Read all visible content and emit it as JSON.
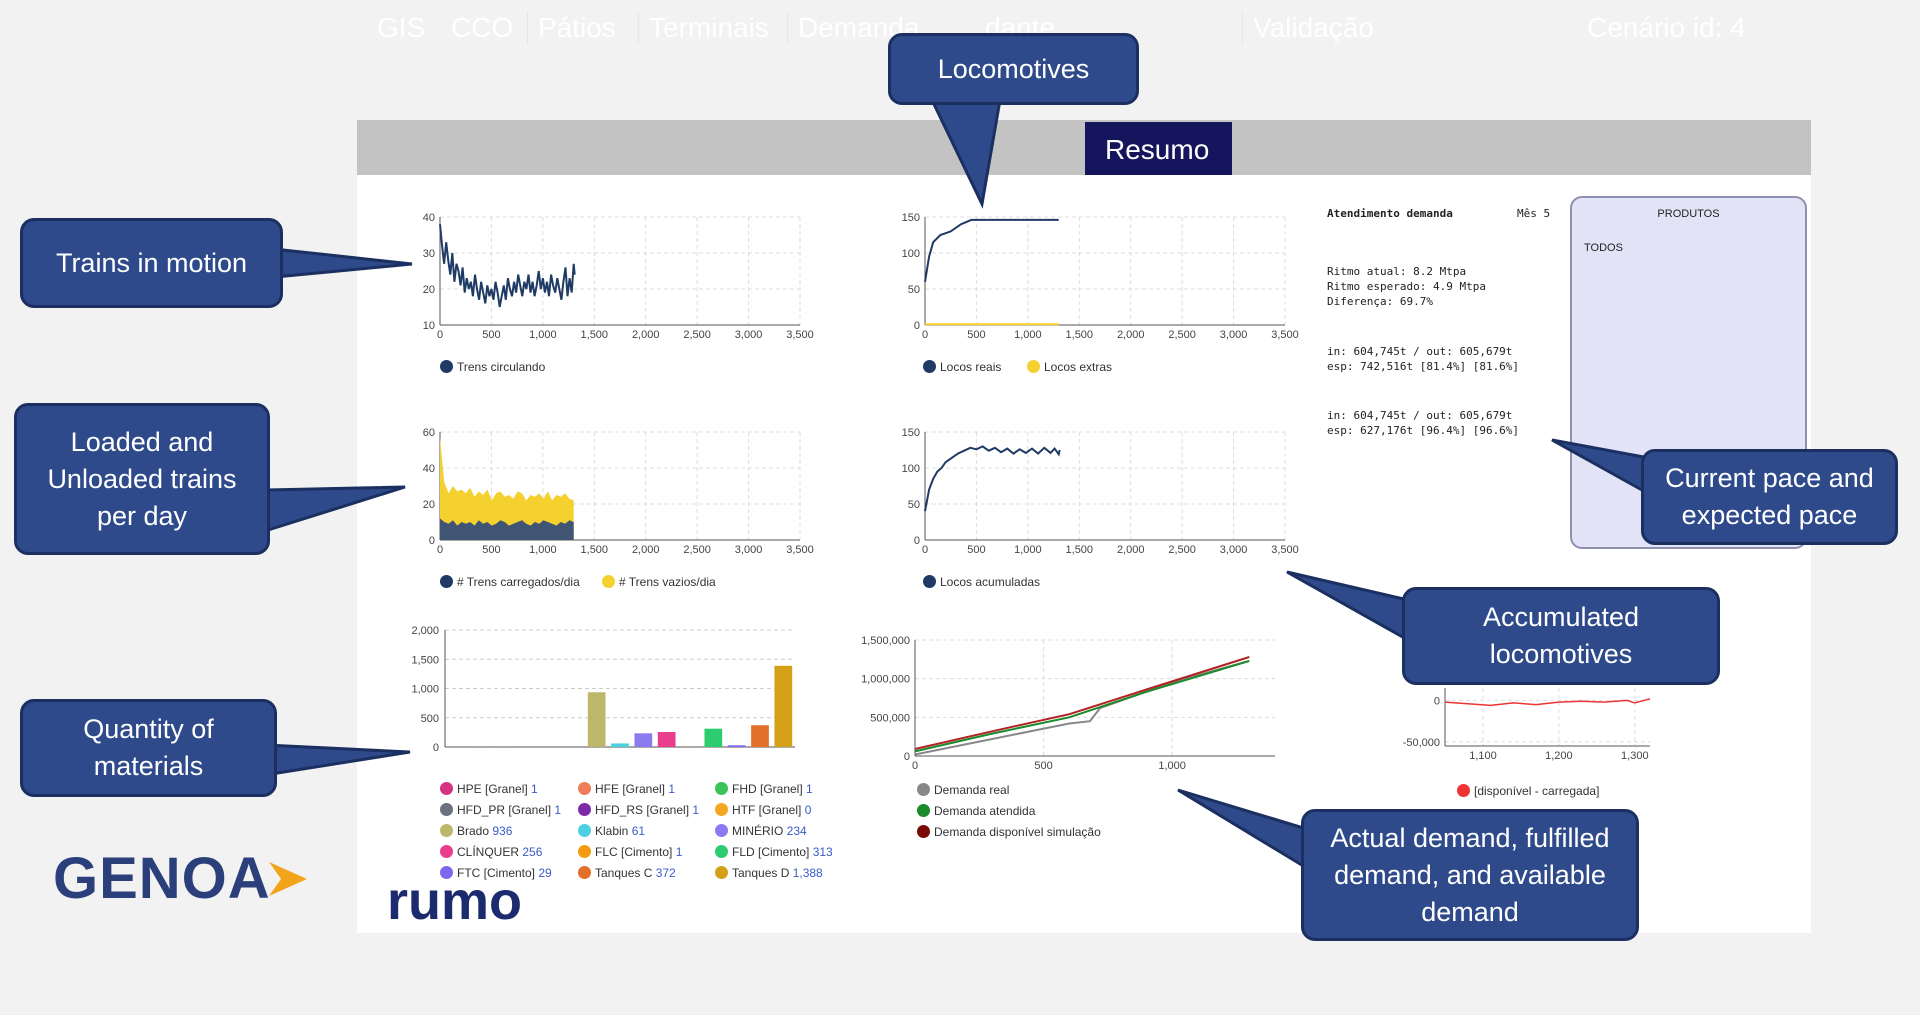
{
  "nav": {
    "tabs": [
      {
        "label": "GIS"
      },
      {
        "label": "CCO"
      },
      {
        "label": "Pátios"
      },
      {
        "label": "Terminais"
      },
      {
        "label": "Demanda"
      },
      {
        "label": "dante"
      },
      {
        "label": "Resumo"
      },
      {
        "label": "Validação"
      }
    ],
    "active": "Resumo",
    "scenario": "Cenário id: 4"
  },
  "summary": {
    "title": "Atendimento demanda",
    "month": "Mês 5",
    "ritmo_atual": "Ritmo atual: 8.2 Mtpa",
    "ritmo_esperado": "Ritmo esperado: 4.9 Mtpa",
    "diferenca": "Diferença: 69.7%",
    "block1_in": "in: 604,745t / out: 605,679t",
    "block1_esp": "esp: 742,516t [81.4%] [81.6%]",
    "block2_in": "in: 604,745t / out: 605,679t",
    "block2_esp": "esp: 627,176t [96.4%] [96.6%]"
  },
  "products": {
    "title": "PRODUTOS",
    "selected": "TODOS"
  },
  "callouts": {
    "locomotives": "Locomotives",
    "trains_motion": "Trains in motion",
    "loaded": "Loaded and Unloaded trains per day",
    "quantity": "Quantity of materials",
    "pace": "Current pace and expected pace",
    "accumulated": "Accumulated locomotives",
    "demand": "Actual demand, fulfilled demand, and available demand"
  },
  "logos": {
    "genoa": "GENOA",
    "rumo": "rumo"
  },
  "colors": {
    "navy": "#1f3a64",
    "yellow": "#f5d130",
    "active_tab": "#14155c",
    "callout": "#2e4a8b"
  },
  "chart_data": [
    {
      "id": "trains",
      "type": "line",
      "xticks": [
        "0",
        "500",
        "1,000",
        "1,500",
        "2,000",
        "2,500",
        "3,000",
        "3,500"
      ],
      "yticks": [
        "10",
        "20",
        "30",
        "40"
      ],
      "xlim": [
        0,
        3500
      ],
      "ylim": [
        10,
        40
      ],
      "series": [
        {
          "name": "Trens circulando",
          "color": "#1f3a64",
          "points": [
            [
              0,
              38
            ],
            [
              20,
              32
            ],
            [
              40,
              27
            ],
            [
              60,
              33
            ],
            [
              80,
              28
            ],
            [
              100,
              24
            ],
            [
              120,
              30
            ],
            [
              140,
              22
            ],
            [
              160,
              27
            ],
            [
              180,
              25
            ],
            [
              200,
              21
            ],
            [
              220,
              26
            ],
            [
              240,
              19
            ],
            [
              260,
              23
            ],
            [
              280,
              20
            ],
            [
              300,
              22
            ],
            [
              320,
              18
            ],
            [
              340,
              24
            ],
            [
              360,
              20
            ],
            [
              380,
              17
            ],
            [
              400,
              22
            ],
            [
              420,
              19
            ],
            [
              440,
              16
            ],
            [
              460,
              21
            ],
            [
              480,
              18
            ],
            [
              500,
              20
            ],
            [
              520,
              17
            ],
            [
              540,
              22
            ],
            [
              560,
              19
            ],
            [
              580,
              15
            ],
            [
              600,
              18
            ],
            [
              620,
              21
            ],
            [
              640,
              17
            ],
            [
              660,
              23
            ],
            [
              680,
              20
            ],
            [
              700,
              18
            ],
            [
              720,
              22
            ],
            [
              740,
              19
            ],
            [
              760,
              24
            ],
            [
              780,
              21
            ],
            [
              800,
              18
            ],
            [
              820,
              22
            ],
            [
              840,
              20
            ],
            [
              860,
              24
            ],
            [
              880,
              19
            ],
            [
              900,
              22
            ],
            [
              920,
              18
            ],
            [
              940,
              21
            ],
            [
              960,
              25
            ],
            [
              980,
              20
            ],
            [
              1000,
              23
            ],
            [
              1020,
              19
            ],
            [
              1040,
              22
            ],
            [
              1060,
              18
            ],
            [
              1080,
              24
            ],
            [
              1100,
              21
            ],
            [
              1120,
              19
            ],
            [
              1140,
              23
            ],
            [
              1160,
              20
            ],
            [
              1180,
              17
            ],
            [
              1200,
              22
            ],
            [
              1220,
              26
            ],
            [
              1240,
              18
            ],
            [
              1260,
              23
            ],
            [
              1280,
              19
            ],
            [
              1300,
              27
            ],
            [
              1310,
              24
            ]
          ]
        }
      ]
    },
    {
      "id": "locos",
      "type": "line",
      "xticks": [
        "0",
        "500",
        "1,000",
        "1,500",
        "2,000",
        "2,500",
        "3,000",
        "3,500"
      ],
      "yticks": [
        "0",
        "50",
        "100",
        "150"
      ],
      "xlim": [
        0,
        3500
      ],
      "ylim": [
        0,
        150
      ],
      "series": [
        {
          "name": "Locos reais",
          "color": "#1f3a64",
          "points": [
            [
              0,
              60
            ],
            [
              40,
              95
            ],
            [
              80,
              115
            ],
            [
              150,
              125
            ],
            [
              250,
              130
            ],
            [
              350,
              140
            ],
            [
              450,
              146
            ],
            [
              700,
              146
            ],
            [
              1000,
              146
            ],
            [
              1300,
              146
            ]
          ]
        },
        {
          "name": "Locos extras",
          "color": "#f5d130",
          "points": [
            [
              0,
              1
            ],
            [
              1300,
              1
            ]
          ]
        }
      ]
    },
    {
      "id": "loaded",
      "type": "area",
      "xticks": [
        "0",
        "500",
        "1,000",
        "1,500",
        "2,000",
        "2,500",
        "3,000",
        "3,500"
      ],
      "yticks": [
        "0",
        "20",
        "40",
        "60"
      ],
      "xlim": [
        0,
        3500
      ],
      "ylim": [
        0,
        60
      ],
      "series": [
        {
          "name": "# Trens carregados/dia",
          "color": "#3f5573",
          "values": [
            12,
            10,
            9,
            11,
            8,
            10,
            9,
            10,
            8,
            11,
            9,
            10,
            8,
            9,
            11,
            10,
            8,
            9,
            10,
            11,
            9,
            8,
            10,
            9,
            11,
            10,
            9,
            8,
            10,
            9,
            11,
            10
          ]
        },
        {
          "name": "# Trens vazios/dia",
          "color": "#f5d130",
          "values": [
            57,
            32,
            26,
            30,
            27,
            28,
            26,
            29,
            24,
            27,
            25,
            28,
            22,
            26,
            27,
            24,
            25,
            23,
            27,
            26,
            22,
            25,
            24,
            26,
            23,
            27,
            22,
            25,
            24,
            26,
            23,
            22
          ]
        }
      ]
    },
    {
      "id": "accum",
      "type": "line",
      "xticks": [
        "0",
        "500",
        "1,000",
        "1,500",
        "2,000",
        "2,500",
        "3,000",
        "3,500"
      ],
      "yticks": [
        "0",
        "50",
        "100",
        "150"
      ],
      "xlim": [
        0,
        3500
      ],
      "ylim": [
        0,
        150
      ],
      "series": [
        {
          "name": "Locos acumuladas",
          "color": "#1f3a64",
          "points": [
            [
              0,
              40
            ],
            [
              40,
              70
            ],
            [
              80,
              85
            ],
            [
              120,
              95
            ],
            [
              160,
              100
            ],
            [
              200,
              108
            ],
            [
              260,
              114
            ],
            [
              320,
              120
            ],
            [
              380,
              124
            ],
            [
              440,
              128
            ],
            [
              500,
              126
            ],
            [
              560,
              130
            ],
            [
              620,
              124
            ],
            [
              680,
              128
            ],
            [
              740,
              122
            ],
            [
              800,
              127
            ],
            [
              860,
              120
            ],
            [
              920,
              126
            ],
            [
              980,
              121
            ],
            [
              1040,
              127
            ],
            [
              1100,
              120
            ],
            [
              1160,
              128
            ],
            [
              1220,
              121
            ],
            [
              1260,
              127
            ],
            [
              1300,
              119
            ],
            [
              1310,
              125
            ]
          ]
        }
      ]
    },
    {
      "id": "materials",
      "type": "bar",
      "yticks": [
        "0",
        "500",
        "1,000",
        "1,500",
        "2,000"
      ],
      "ylim": [
        0,
        2000
      ],
      "series": [
        {
          "name": "HPE [Granel]",
          "value": 1,
          "color": "#d63384"
        },
        {
          "name": "HFE [Granel]",
          "value": 1,
          "color": "#f07d5a"
        },
        {
          "name": "FHD [Granel]",
          "value": 1,
          "color": "#39c45a"
        },
        {
          "name": "HFD_PR [Granel]",
          "value": 1,
          "color": "#6c7280"
        },
        {
          "name": "HFD_RS [Granel]",
          "value": 1,
          "color": "#7d2aa8"
        },
        {
          "name": "HTF [Granel]",
          "value": 0,
          "color": "#f5a623"
        },
        {
          "name": "Brado",
          "value": 936,
          "color": "#bdb76b"
        },
        {
          "name": "Klabin",
          "value": 61,
          "color": "#4dd0e1"
        },
        {
          "name": "MINÉRIO",
          "value": 234,
          "color": "#8b7bf0"
        },
        {
          "name": "CLÍNQUER",
          "value": 256,
          "color": "#e83e8c"
        },
        {
          "name": "FLC [Cimento]",
          "value": 1,
          "color": "#f39c12"
        },
        {
          "name": "FLD [Cimento]",
          "value": 313,
          "color": "#2ecc71"
        },
        {
          "name": "FTC [Cimento]",
          "value": 29,
          "color": "#7b68ee"
        },
        {
          "name": "Tanques C",
          "value": 372,
          "color": "#e2702b"
        },
        {
          "name": "Tanques D",
          "value": 1388,
          "color": "#d4a017"
        }
      ]
    },
    {
      "id": "demand",
      "type": "line",
      "xticks": [
        "0",
        "500",
        "1,000"
      ],
      "yticks": [
        "0",
        "500,000",
        "1,000,000",
        "1,500,000"
      ],
      "xlim": [
        0,
        1400
      ],
      "ylim": [
        0,
        1500000
      ],
      "series": [
        {
          "name": "Demanda real",
          "color": "#888888",
          "points": [
            [
              0,
              20000
            ],
            [
              300,
              220000
            ],
            [
              600,
              420000
            ],
            [
              680,
              450000
            ],
            [
              720,
              620000
            ],
            [
              1000,
              950000
            ],
            [
              1300,
              1230000
            ]
          ]
        },
        {
          "name": "Demanda atendida",
          "color": "#1a8a2a",
          "points": [
            [
              0,
              60000
            ],
            [
              300,
              290000
            ],
            [
              600,
              500000
            ],
            [
              900,
              830000
            ],
            [
              1300,
              1230000
            ]
          ]
        },
        {
          "name": "Demanda disponível simulação",
          "color": "#b22222",
          "points": [
            [
              0,
              90000
            ],
            [
              300,
              320000
            ],
            [
              600,
              540000
            ],
            [
              900,
              860000
            ],
            [
              1300,
              1280000
            ]
          ]
        }
      ]
    },
    {
      "id": "balance",
      "type": "line",
      "xticks": [
        "1,100",
        "1,200",
        "1,300"
      ],
      "yticks": [
        "-50,000",
        "0"
      ],
      "xlim": [
        1050,
        1320
      ],
      "ylim": [
        -55000,
        15000
      ],
      "series": [
        {
          "name": "[disponível - carregada]",
          "color": "#ee3333",
          "points": [
            [
              1050,
              -2000
            ],
            [
              1080,
              -4000
            ],
            [
              1110,
              -6000
            ],
            [
              1140,
              -3000
            ],
            [
              1170,
              -5000
            ],
            [
              1200,
              -2000
            ],
            [
              1230,
              -1000
            ],
            [
              1260,
              -2000
            ],
            [
              1290,
              0
            ],
            [
              1300,
              -3000
            ],
            [
              1320,
              2000
            ]
          ]
        }
      ]
    }
  ]
}
